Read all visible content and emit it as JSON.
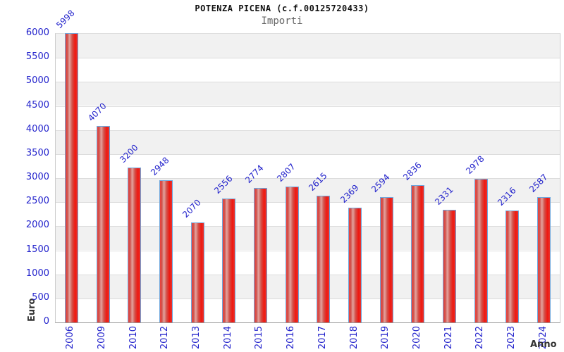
{
  "chart_data": {
    "type": "bar",
    "title": "POTENZA PICENA (c.f.00125720433)",
    "subtitle": "Importi",
    "xlabel": "Anno",
    "ylabel": "Euro",
    "categories": [
      "2006",
      "2009",
      "2010",
      "2012",
      "2013",
      "2014",
      "2015",
      "2016",
      "2017",
      "2018",
      "2019",
      "2020",
      "2021",
      "2022",
      "2023",
      "2024"
    ],
    "values": [
      5998,
      4070,
      3200,
      2948,
      2070,
      2556,
      2774,
      2807,
      2615,
      2369,
      2594,
      2836,
      2331,
      2978,
      2316,
      2587
    ],
    "ylim": [
      0,
      6000
    ],
    "ytick_step": 500,
    "yticks": [
      0,
      500,
      1000,
      1500,
      2000,
      2500,
      3000,
      3500,
      4000,
      4500,
      5000,
      5500,
      6000
    ],
    "grid": "horizontal",
    "background_bands": "alternating",
    "legend": "none",
    "value_labels": "rotated-45-above-bars",
    "colors": {
      "bar_red": "#e63530",
      "bar_highlight": "#e3a39e",
      "bar_border": "#6ea7dd",
      "label_blue": "#2323cc",
      "band_gray": "#f1f1f1",
      "grid_line": "#dcdcdc",
      "axis_line": "#999999",
      "title_color": "#111111",
      "subtitle_color": "#666666",
      "axis_title_color": "#333333"
    }
  }
}
